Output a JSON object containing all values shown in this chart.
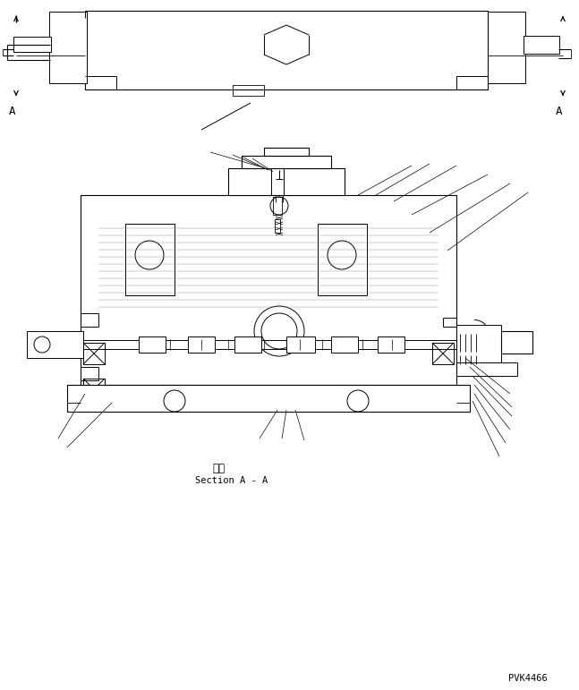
{
  "background_color": "#ffffff",
  "line_color": "#000000",
  "section_label_ja": "断面",
  "section_label_en": "Section A - A",
  "watermark": "PVK4466",
  "fig_width": 6.47,
  "fig_height": 7.71,
  "dpi": 100
}
